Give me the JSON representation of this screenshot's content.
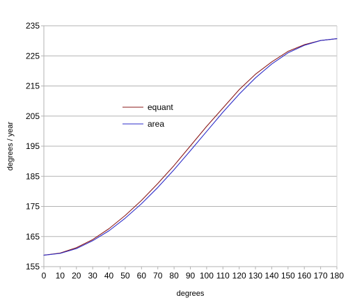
{
  "chart_data": {
    "type": "line",
    "title": "",
    "xlabel": "degrees",
    "ylabel": "degrees / year",
    "xlim": [
      0,
      180
    ],
    "ylim": [
      155,
      235
    ],
    "x_ticks": [
      0,
      10,
      20,
      30,
      40,
      50,
      60,
      70,
      80,
      90,
      100,
      110,
      120,
      130,
      140,
      150,
      160,
      170,
      180
    ],
    "y_ticks": [
      155,
      165,
      175,
      185,
      195,
      205,
      215,
      225,
      235
    ],
    "grid": "horizontal",
    "legend_position": "center-left",
    "x": [
      0,
      10,
      20,
      30,
      40,
      50,
      60,
      70,
      80,
      90,
      100,
      110,
      120,
      130,
      140,
      150,
      160,
      170,
      180
    ],
    "series": [
      {
        "name": "equant",
        "color": "#8B1A1A",
        "values": [
          158.8,
          159.5,
          161.3,
          164.0,
          167.6,
          172.0,
          177.0,
          182.6,
          188.6,
          195.1,
          201.6,
          207.7,
          213.8,
          218.9,
          223.0,
          226.5,
          228.7,
          230.1,
          230.7
        ]
      },
      {
        "name": "area",
        "color": "#2B2BC8",
        "values": [
          158.8,
          159.4,
          161.0,
          163.6,
          166.9,
          171.1,
          175.9,
          181.3,
          187.2,
          193.5,
          199.9,
          206.3,
          212.3,
          217.7,
          222.3,
          226.0,
          228.5,
          230.1,
          230.7
        ]
      }
    ]
  }
}
